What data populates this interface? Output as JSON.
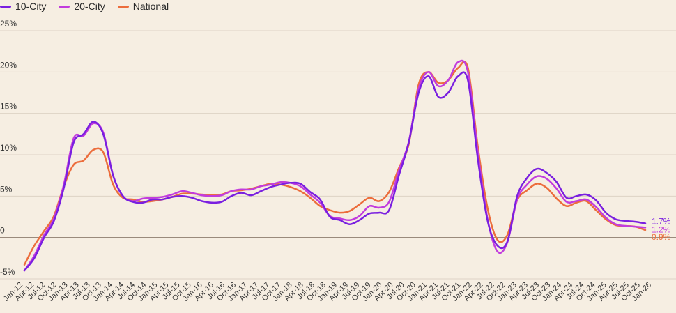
{
  "chart_data": {
    "type": "line",
    "title": "",
    "xlabel": "",
    "ylabel": "",
    "ylim": [
      -5,
      25
    ],
    "legend": "top-left",
    "grid": true,
    "y_ticks": [
      "25%",
      "20%",
      "15%",
      "10%",
      "5%",
      "0",
      "-5%"
    ],
    "y_tick_values": [
      25,
      20,
      15,
      10,
      5,
      0,
      -5
    ],
    "x_tick_labels": [
      "Jan-12",
      "Apr-12",
      "Jul-12",
      "Oct-12",
      "Jan-13",
      "Apr-13",
      "Jul-13",
      "Oct-13",
      "Jan-14",
      "Apr-14",
      "Jul-14",
      "Oct-14",
      "Jan-15",
      "Apr-15",
      "Jul-15",
      "Oct-15",
      "Jan-16",
      "Apr-16",
      "Jul-16",
      "Oct-16",
      "Jan-17",
      "Apr-17",
      "Jul-17",
      "Oct-17",
      "Jan-18",
      "Apr-18",
      "Jul-18",
      "Oct-18",
      "Jan-19",
      "Apr-19",
      "Jul-19",
      "Oct-19",
      "Jan-20",
      "Apr-20",
      "Jul-20",
      "Oct-20",
      "Jan-21",
      "Apr-21",
      "Jul-21",
      "Oct-21",
      "Jan-22",
      "Apr-22",
      "Jul-22",
      "Oct-22",
      "Jan-23",
      "Apr-23",
      "Jul-23",
      "Oct-23",
      "Jan-24",
      "Apr-24",
      "Jul-24",
      "Oct-24",
      "Jan-25",
      "Apr-25",
      "Jul-25",
      "Oct-25",
      "Jan-26"
    ],
    "series": [
      {
        "name": "10-City",
        "color": "#7a1fe0",
        "end_label": "1.7%",
        "values": [
          -4.0,
          -2.5,
          0.0,
          2.0,
          6.0,
          11.5,
          12.5,
          14.0,
          12.5,
          7.5,
          5.0,
          4.3,
          4.2,
          4.6,
          4.6,
          4.9,
          5.0,
          4.8,
          4.4,
          4.2,
          4.3,
          5.0,
          5.4,
          5.1,
          5.6,
          6.1,
          6.4,
          6.6,
          6.5,
          5.5,
          4.6,
          2.5,
          2.1,
          1.6,
          2.1,
          2.9,
          3.0,
          3.3,
          7.5,
          11.5,
          17.5,
          19.5,
          17.0,
          17.5,
          19.5,
          19.0,
          9.5,
          2.0,
          -1.0,
          -0.5,
          5.0,
          7.2,
          8.3,
          7.8,
          6.7,
          4.8,
          5.0,
          5.2,
          4.5,
          3.0,
          2.2,
          2.0,
          1.9,
          1.7
        ]
      },
      {
        "name": "20-City",
        "color": "#c23cdd",
        "end_label": "1.2%",
        "values": [
          -4.0,
          -2.2,
          0.3,
          2.3,
          6.4,
          12.0,
          12.3,
          13.8,
          12.7,
          7.5,
          5.0,
          4.4,
          4.7,
          4.8,
          4.9,
          5.2,
          5.6,
          5.4,
          5.1,
          5.0,
          5.1,
          5.6,
          5.8,
          5.8,
          6.2,
          6.4,
          6.7,
          6.6,
          6.2,
          5.2,
          4.2,
          2.6,
          2.3,
          2.1,
          2.6,
          3.8,
          3.6,
          4.3,
          8.1,
          11.6,
          18.0,
          20.0,
          18.3,
          19.0,
          21.2,
          20.0,
          10.3,
          2.2,
          -1.7,
          -0.6,
          4.6,
          6.4,
          7.4,
          7.1,
          5.9,
          4.3,
          4.4,
          4.6,
          3.7,
          2.4,
          1.6,
          1.4,
          1.3,
          1.2
        ]
      },
      {
        "name": "National",
        "color": "#ec6d3c",
        "end_label": "0.9%",
        "values": [
          -3.3,
          -1.0,
          0.8,
          2.6,
          6.2,
          8.8,
          9.3,
          10.6,
          10.3,
          6.4,
          4.8,
          4.6,
          4.3,
          4.4,
          4.6,
          4.9,
          5.3,
          5.3,
          5.2,
          5.1,
          5.2,
          5.6,
          5.7,
          5.9,
          6.2,
          6.5,
          6.4,
          6.1,
          5.6,
          4.8,
          3.8,
          3.3,
          3.0,
          3.2,
          4.0,
          4.8,
          4.4,
          5.5,
          8.4,
          11.3,
          18.5,
          20.0,
          18.7,
          19.0,
          20.5,
          20.5,
          11.0,
          3.5,
          -0.3,
          0.3,
          4.5,
          5.7,
          6.5,
          6.0,
          4.7,
          3.8,
          4.2,
          4.4,
          3.3,
          2.2,
          1.5,
          1.4,
          1.3,
          0.9
        ]
      }
    ]
  }
}
